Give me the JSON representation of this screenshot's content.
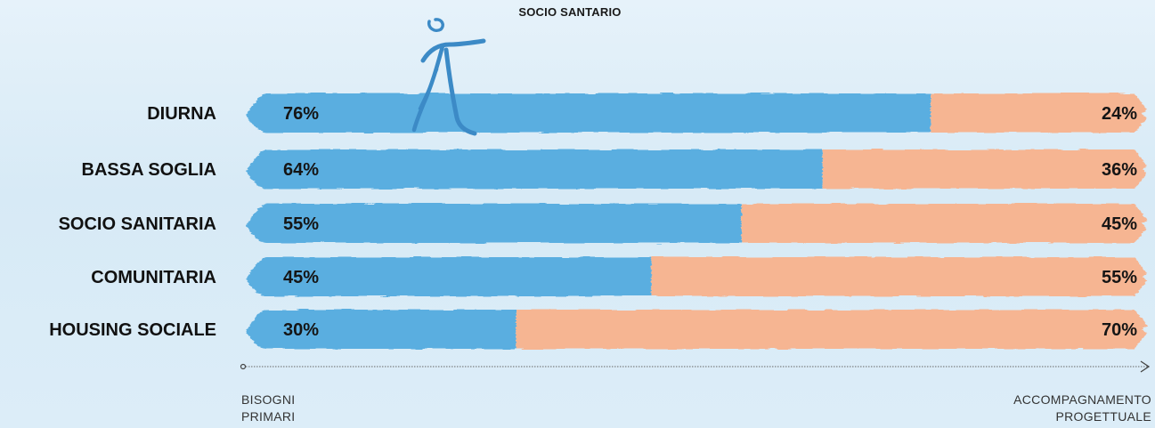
{
  "title": "SOCIO SANTARIO",
  "axis": {
    "left_line1": "BISOGNI",
    "left_line2": "PRIMARI",
    "right_line1": "ACCOMPAGNAMENTO",
    "right_line2": "PROGETTUALE"
  },
  "colors": {
    "primary": "#5aaee0",
    "secondary": "#f6b592",
    "background": "#dfeef8"
  },
  "chart_data": {
    "type": "bar",
    "orientation": "horizontal",
    "stacked": true,
    "categories": [
      "DIURNA",
      "BASSA SOGLIA",
      "SOCIO SANITARIA",
      "COMUNITARIA",
      "HOUSING SOCIALE"
    ],
    "series": [
      {
        "values": [
          76,
          64,
          55,
          45,
          30
        ],
        "labels": [
          "76%",
          "64%",
          "55%",
          "45%",
          "30%"
        ]
      },
      {
        "values": [
          24,
          36,
          45,
          55,
          70
        ],
        "labels": [
          "24%",
          "36%",
          "45%",
          "55%",
          "70%"
        ]
      }
    ],
    "xlim": [
      0,
      100
    ],
    "title": "SOCIO SANTARIO",
    "grid": false,
    "legend": "none"
  }
}
